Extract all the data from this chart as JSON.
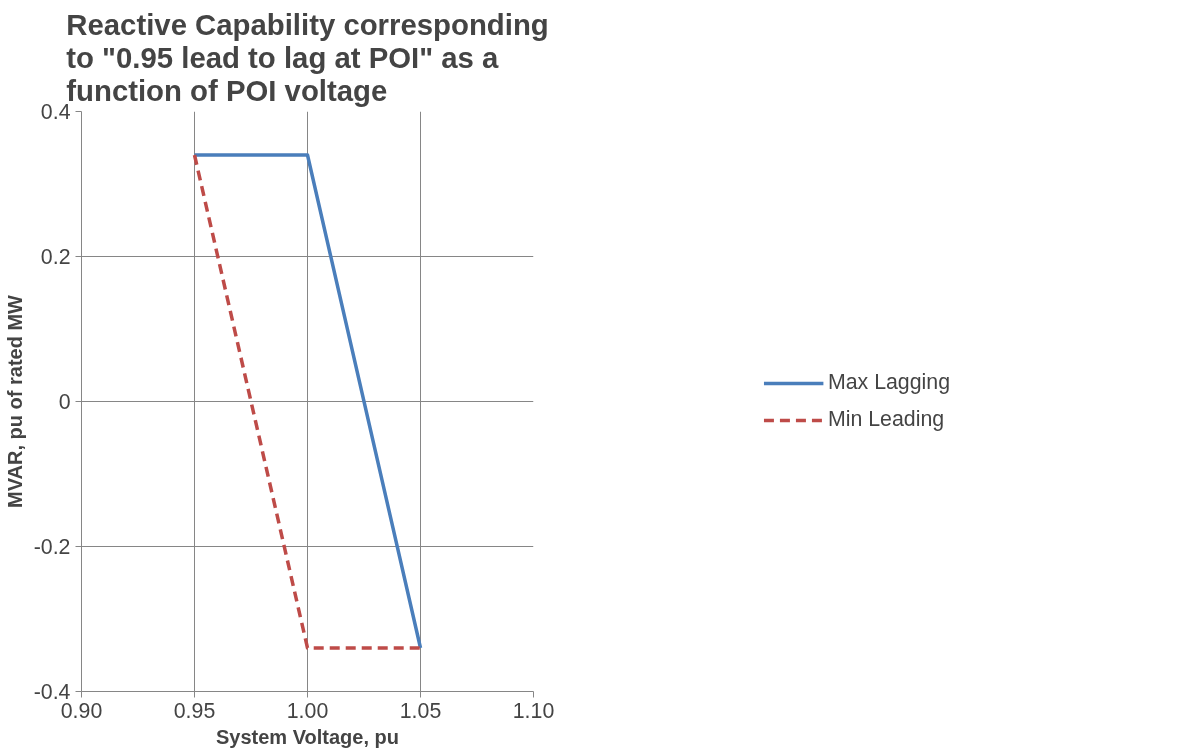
{
  "chart_data": {
    "type": "line",
    "title": "Reactive Capability corresponding\nto \"0.95 lead to lag at POI\" as a\nfunction of POI voltage",
    "xlabel": "System Voltage, pu",
    "ylabel": "MVAR, pu of rated MW",
    "series": [
      {
        "name": "Max Lagging",
        "color": "#4a7ebb",
        "line_style": "solid",
        "x": [
          0.95,
          1.0,
          1.05
        ],
        "values": [
          0.34,
          0.34,
          -0.34
        ]
      },
      {
        "name": "Min Leading",
        "color": "#be4b48",
        "line_style": "dashed",
        "x": [
          0.95,
          1.0,
          1.05
        ],
        "values": [
          0.34,
          -0.34,
          -0.34
        ]
      }
    ],
    "xlim": [
      0.9,
      1.1
    ],
    "xticks": [
      {
        "value": 0.9,
        "label": "0.90"
      },
      {
        "value": 0.95,
        "label": "0.95"
      },
      {
        "value": 1.0,
        "label": "1.00"
      },
      {
        "value": 1.05,
        "label": "1.05"
      },
      {
        "value": 1.1,
        "label": "1.10"
      }
    ],
    "ylim": [
      -0.4,
      0.4
    ],
    "yticks": [
      -0.4,
      -0.2,
      0,
      0.2,
      0.4
    ],
    "grid": true,
    "legend": "right",
    "marker": "none"
  }
}
